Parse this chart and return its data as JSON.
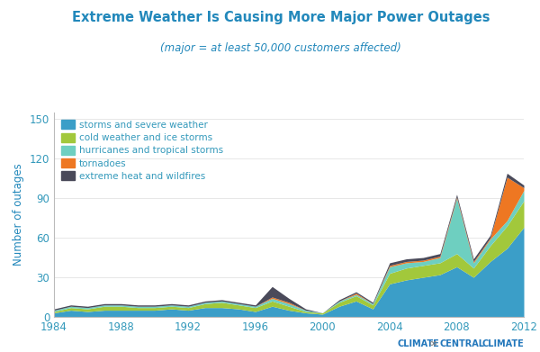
{
  "years": [
    1984,
    1985,
    1986,
    1987,
    1988,
    1989,
    1990,
    1991,
    1992,
    1993,
    1994,
    1995,
    1996,
    1997,
    1998,
    1999,
    2000,
    2001,
    2002,
    2003,
    2004,
    2005,
    2006,
    2007,
    2008,
    2009,
    2010,
    2011,
    2012
  ],
  "storms": [
    3,
    5,
    4,
    5,
    5,
    5,
    5,
    6,
    5,
    7,
    7,
    6,
    4,
    8,
    5,
    3,
    2,
    8,
    12,
    6,
    25,
    28,
    30,
    32,
    38,
    30,
    42,
    52,
    68
  ],
  "cold": [
    1,
    2,
    2,
    3,
    3,
    2,
    2,
    2,
    2,
    3,
    4,
    3,
    3,
    4,
    3,
    1,
    1,
    3,
    4,
    3,
    8,
    9,
    9,
    9,
    10,
    7,
    12,
    17,
    20
  ],
  "hurricanes": [
    1,
    1,
    1,
    1,
    1,
    1,
    1,
    1,
    1,
    1,
    1,
    1,
    1,
    2,
    2,
    1,
    0,
    1,
    1,
    1,
    5,
    4,
    3,
    4,
    42,
    4,
    5,
    4,
    8
  ],
  "tornadoes": [
    0,
    0,
    0,
    0,
    0,
    0,
    0,
    0,
    0,
    0,
    0,
    0,
    0,
    1,
    1,
    0,
    0,
    0,
    1,
    0,
    1,
    1,
    1,
    1,
    1,
    1,
    1,
    33,
    2
  ],
  "heat": [
    1,
    1,
    1,
    1,
    1,
    1,
    1,
    1,
    1,
    1,
    1,
    1,
    1,
    8,
    3,
    1,
    0,
    1,
    1,
    1,
    2,
    2,
    2,
    2,
    2,
    2,
    2,
    3,
    2
  ],
  "colors": {
    "storms": "#3B9EC8",
    "cold": "#A2C83B",
    "hurricanes": "#6ECFC0",
    "tornadoes": "#EE7722",
    "heat": "#4A4A5A"
  },
  "title": "Extreme Weather Is Causing More Major Power Outages",
  "subtitle": "(major = at least 50,000 customers affected)",
  "ylabel": "Number of outages",
  "ylim": [
    0,
    155
  ],
  "yticks": [
    0,
    30,
    60,
    90,
    120,
    150
  ],
  "xticks": [
    1984,
    1988,
    1992,
    1996,
    2000,
    2004,
    2008,
    2012
  ],
  "title_color": "#2288BB",
  "subtitle_color": "#2288BB",
  "ylabel_color": "#2288BB",
  "tick_color": "#3399BB",
  "background_color": "#FFFFFF",
  "logo_text_color": "#2277BB"
}
